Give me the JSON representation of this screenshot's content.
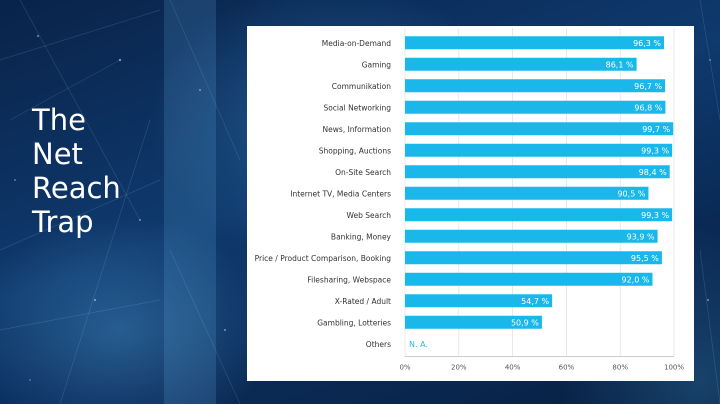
{
  "slide": {
    "title_lines": [
      "The",
      "Net",
      "Reach",
      "Trap"
    ]
  },
  "chart_data": {
    "type": "bar",
    "orientation": "horizontal",
    "categories": [
      "Media-on-Demand",
      "Gaming",
      "Communikation",
      "Social Networking",
      "News, Information",
      "Shopping, Auctions",
      "On-Site Search",
      "Internet TV, Media Centers",
      "Web Search",
      "Banking, Money",
      "Price / Product Comparison, Booking",
      "Filesharing, Webspace",
      "X-Rated / Adult",
      "Gambling, Lotteries",
      "Others"
    ],
    "values": [
      96.3,
      86.1,
      96.7,
      96.8,
      99.7,
      99.3,
      98.4,
      90.5,
      99.3,
      93.9,
      95.5,
      92.0,
      54.7,
      50.9,
      null
    ],
    "value_labels": [
      "96,3 %",
      "86,1 %",
      "96,7 %",
      "96,8 %",
      "99,7 %",
      "99,3 %",
      "98,4 %",
      "90,5 %",
      "99,3 %",
      "93,9 %",
      "95,5 %",
      "92,0 %",
      "54,7 %",
      "50,9 %",
      "N. A."
    ],
    "xlim": [
      0,
      100
    ],
    "x_ticks": [
      "0%",
      "20%",
      "40%",
      "60%",
      "80%",
      "100%"
    ],
    "grid": true,
    "bar_color": "#1ab7ea"
  }
}
